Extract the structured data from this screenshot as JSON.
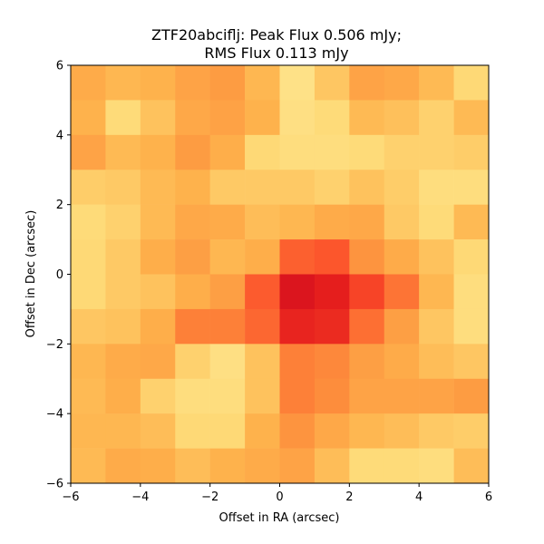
{
  "chart_data": {
    "type": "heatmap",
    "title_line1": "ZTF20abciflj: Peak Flux 0.506 mJy;",
    "title_line2": "RMS Flux 0.113 mJy",
    "xlabel": "Offset in RA (arcsec)",
    "ylabel": "Offset in Dec (arcsec)",
    "xlim": [
      -6,
      6
    ],
    "ylim": [
      -6,
      6
    ],
    "xticks": [
      -6,
      -4,
      -2,
      0,
      2,
      4,
      6
    ],
    "yticks": [
      -6,
      -4,
      -2,
      0,
      2,
      4,
      6
    ],
    "xtick_labels": [
      "−6",
      "−4",
      "−2",
      "0",
      "2",
      "4",
      "6"
    ],
    "ytick_labels": [
      "−6",
      "−4",
      "−2",
      "0",
      "2",
      "4",
      "6"
    ],
    "colormap": "YlOrRd",
    "vmin": -0.6,
    "vmax": 1.4,
    "pixel_size_arcsec": 1,
    "grid": false,
    "legend": "none",
    "rows_top_to_bottom": [
      [
        0.2,
        0.12,
        0.15,
        0.25,
        0.3,
        0.12,
        -0.2,
        0.02,
        0.25,
        0.22,
        0.1,
        -0.1
      ],
      [
        0.15,
        -0.12,
        0.05,
        0.22,
        0.26,
        0.15,
        -0.18,
        -0.12,
        0.1,
        0.06,
        -0.05,
        0.1
      ],
      [
        0.25,
        0.1,
        0.15,
        0.3,
        0.18,
        -0.1,
        -0.15,
        -0.15,
        -0.12,
        -0.05,
        -0.05,
        -0.02
      ],
      [
        -0.02,
        0.0,
        0.1,
        0.15,
        0.0,
        0.0,
        0.0,
        -0.05,
        0.05,
        -0.02,
        -0.15,
        -0.15
      ],
      [
        -0.12,
        -0.05,
        0.1,
        0.22,
        0.2,
        0.08,
        0.12,
        0.2,
        0.22,
        0.0,
        -0.12,
        0.1
      ],
      [
        -0.1,
        0.0,
        0.18,
        0.28,
        0.12,
        0.18,
        0.58,
        0.62,
        0.35,
        0.2,
        0.05,
        -0.1
      ],
      [
        -0.1,
        0.0,
        0.05,
        0.18,
        0.28,
        0.6,
        0.95,
        0.88,
        0.7,
        0.5,
        0.12,
        -0.15
      ],
      [
        0.02,
        0.05,
        0.18,
        0.45,
        0.45,
        0.55,
        0.85,
        0.82,
        0.52,
        0.28,
        0.02,
        -0.15
      ],
      [
        0.12,
        0.2,
        0.22,
        -0.05,
        -0.18,
        0.05,
        0.45,
        0.42,
        0.28,
        0.2,
        0.08,
        0.02
      ],
      [
        0.1,
        0.18,
        -0.05,
        -0.15,
        -0.15,
        0.05,
        0.45,
        0.4,
        0.25,
        0.25,
        0.25,
        0.3
      ],
      [
        0.12,
        0.12,
        0.08,
        -0.1,
        -0.1,
        0.15,
        0.35,
        0.22,
        0.12,
        0.08,
        0.0,
        -0.02
      ],
      [
        0.1,
        0.2,
        0.18,
        0.08,
        0.15,
        0.2,
        0.25,
        0.08,
        -0.12,
        -0.12,
        -0.15,
        0.08
      ]
    ]
  }
}
